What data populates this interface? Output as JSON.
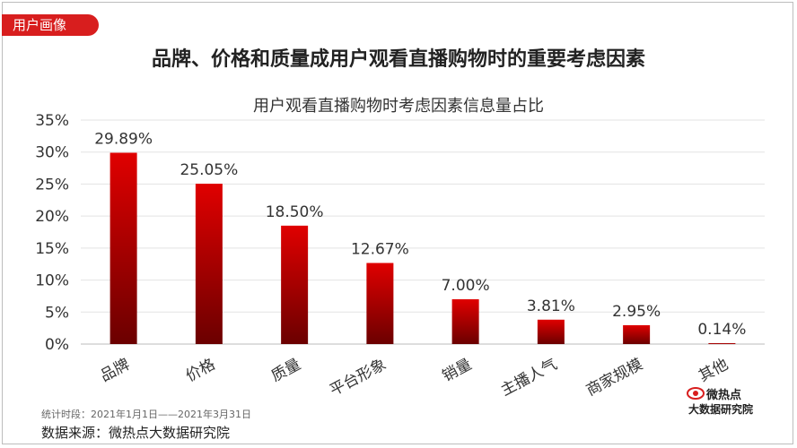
{
  "badge": "用户画像",
  "main_title": "品牌、价格和质量成用户观看直播购物时的重要考虑因素",
  "footer": {
    "period": "统计时段：2021年1月1日——2021年3月31日",
    "source": "数据来源：微热点大数据研究院"
  },
  "logo": {
    "top": "微热点",
    "bottom": "大数据研究院"
  },
  "colors": {
    "accent": "#d81e1e",
    "bar_top": "#e00000",
    "bar_bottom": "#6b0000"
  },
  "chart_data": {
    "type": "bar",
    "title": "用户观看直播购物时考虑因素信息量占比",
    "categories": [
      "品牌",
      "价格",
      "质量",
      "平台形象",
      "销量",
      "主播人气",
      "商家规模",
      "其他"
    ],
    "values": [
      29.89,
      25.05,
      18.5,
      12.67,
      7.0,
      3.81,
      2.95,
      0.14
    ],
    "value_labels": [
      "29.89%",
      "25.05%",
      "18.50%",
      "12.67%",
      "7.00%",
      "3.81%",
      "2.95%",
      "0.14%"
    ],
    "yticks": [
      "0%",
      "5%",
      "10%",
      "15%",
      "20%",
      "25%",
      "30%",
      "35%"
    ],
    "ylim": [
      0,
      35
    ],
    "grid": true,
    "legend": "none"
  }
}
